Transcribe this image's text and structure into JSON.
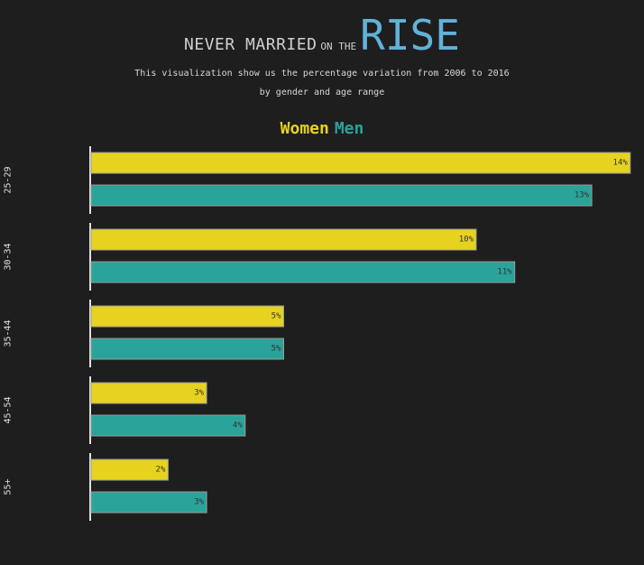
{
  "title": {
    "part1": "NEVER MARRIED",
    "part2": "ON THE",
    "part3": "RISE"
  },
  "subtitle_line1": "This visualization show us the percentage variation from 2006 to 2016",
  "subtitle_line2": "by gender and age range",
  "legend": {
    "women": "Women",
    "men": "Men"
  },
  "colors": {
    "women": "#e6d21f",
    "men": "#2aa39a",
    "background": "#1e1e1e",
    "title_accent": "#62b2d8"
  },
  "chart_data": {
    "type": "bar",
    "orientation": "horizontal",
    "categories": [
      "25-29",
      "30-34",
      "35-44",
      "45-54",
      "55+"
    ],
    "series": [
      {
        "name": "Women",
        "values": [
          14,
          10,
          5,
          3,
          2
        ],
        "labels": [
          "14%",
          "10%",
          "5%",
          "3%",
          "2%"
        ]
      },
      {
        "name": "Men",
        "values": [
          13,
          11,
          5,
          4,
          3
        ],
        "labels": [
          "13%",
          "11%",
          "5%",
          "4%",
          "3%"
        ]
      }
    ],
    "value_unit": "%",
    "grid": false,
    "legend_position": "top-center"
  }
}
